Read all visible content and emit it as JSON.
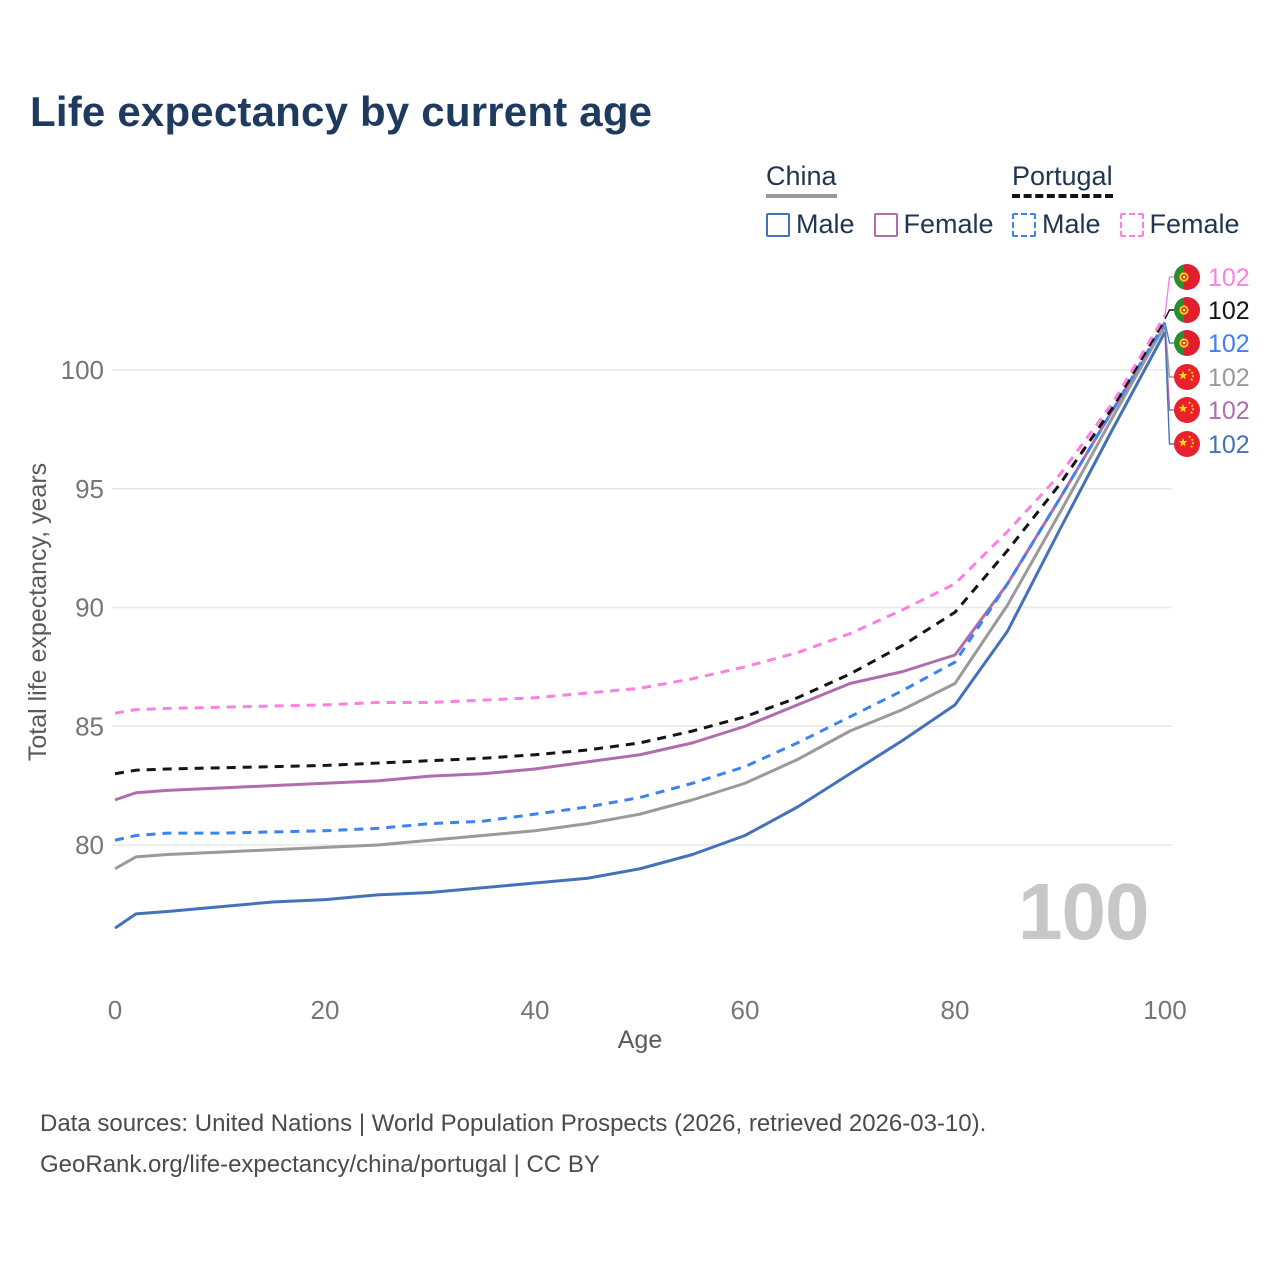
{
  "title": "Life expectancy by current age",
  "legend": {
    "china": {
      "label": "China",
      "male_label": "Male",
      "female_label": "Female",
      "line_style": "solid",
      "underline_color": "#999999"
    },
    "portugal": {
      "label": "Portugal",
      "male_label": "Male",
      "female_label": "Female",
      "line_style": "dashed",
      "underline_color": "#141414"
    }
  },
  "watermark": "100",
  "chart_data": {
    "type": "line",
    "title": "Life expectancy by current age",
    "xlabel": "Age",
    "ylabel": "Total life expectancy, years",
    "x_ticks": [
      0,
      20,
      40,
      60,
      80,
      100
    ],
    "y_ticks": [
      80,
      85,
      90,
      95,
      100
    ],
    "xlim": [
      0,
      100
    ],
    "ylim": [
      76,
      103
    ],
    "grid": true,
    "legend_position": "top-right",
    "x": [
      0,
      2,
      5,
      10,
      15,
      20,
      25,
      30,
      35,
      40,
      45,
      50,
      55,
      60,
      65,
      70,
      75,
      80,
      85,
      90,
      95,
      100
    ],
    "series": [
      {
        "name": "Portugal Female",
        "country": "Portugal",
        "sex": "Female",
        "color": "#fb80e2",
        "dash": true,
        "flag": "portugal",
        "end_label": "102",
        "values": [
          85.55,
          85.7,
          85.75,
          85.8,
          85.85,
          85.9,
          86.0,
          86.0,
          86.1,
          86.2,
          86.4,
          86.6,
          87.0,
          87.5,
          88.1,
          88.9,
          89.9,
          91.0,
          93.2,
          95.6,
          98.6,
          102.3
        ]
      },
      {
        "name": "Portugal",
        "country": "Portugal",
        "sex": "Both",
        "color": "#141414",
        "dash": true,
        "flag": "portugal",
        "end_label": "102",
        "values": [
          83.0,
          83.15,
          83.2,
          83.25,
          83.3,
          83.35,
          83.45,
          83.55,
          83.65,
          83.8,
          84.0,
          84.3,
          84.8,
          85.4,
          86.2,
          87.2,
          88.4,
          89.8,
          92.4,
          95.2,
          98.4,
          102.15
        ]
      },
      {
        "name": "Portugal Male",
        "country": "Portugal",
        "sex": "Male",
        "color": "#3c82f0",
        "dash": true,
        "flag": "portugal",
        "end_label": "102",
        "values": [
          80.2,
          80.4,
          80.5,
          80.5,
          80.55,
          80.6,
          80.7,
          80.9,
          81.0,
          81.3,
          81.6,
          82.0,
          82.6,
          83.3,
          84.3,
          85.4,
          86.5,
          87.7,
          91.0,
          94.6,
          98.3,
          102.0
        ]
      },
      {
        "name": "China",
        "country": "China",
        "sex": "Both",
        "color": "#9a9a9a",
        "dash": false,
        "flag": "china",
        "end_label": "102",
        "values": [
          79.0,
          79.5,
          79.6,
          79.7,
          79.8,
          79.9,
          80.0,
          80.2,
          80.4,
          80.6,
          80.9,
          81.3,
          81.9,
          82.6,
          83.6,
          84.8,
          85.7,
          86.8,
          90.1,
          94.0,
          98.0,
          101.9
        ]
      },
      {
        "name": "China Female",
        "country": "China",
        "sex": "Female",
        "color": "#b06dad",
        "dash": false,
        "flag": "china",
        "end_label": "102",
        "values": [
          81.9,
          82.2,
          82.3,
          82.4,
          82.5,
          82.6,
          82.7,
          82.9,
          83.0,
          83.2,
          83.5,
          83.8,
          84.3,
          85.0,
          85.9,
          86.8,
          87.3,
          88.0,
          91.0,
          94.6,
          98.3,
          101.85
        ]
      },
      {
        "name": "China Male",
        "country": "China",
        "sex": "Male",
        "color": "#4472b8",
        "dash": false,
        "flag": "china",
        "end_label": "102",
        "values": [
          76.5,
          77.1,
          77.2,
          77.4,
          77.6,
          77.7,
          77.9,
          78.0,
          78.2,
          78.4,
          78.6,
          79.0,
          79.6,
          80.4,
          81.6,
          83.0,
          84.4,
          85.9,
          89.0,
          93.3,
          97.5,
          101.6
        ]
      }
    ]
  },
  "footer": {
    "line1": "Data sources: United Nations | World Population Prospects (2026, retrieved 2026-03-10).",
    "line2": "GeoRank.org/life-expectancy/china/portugal | CC BY"
  }
}
